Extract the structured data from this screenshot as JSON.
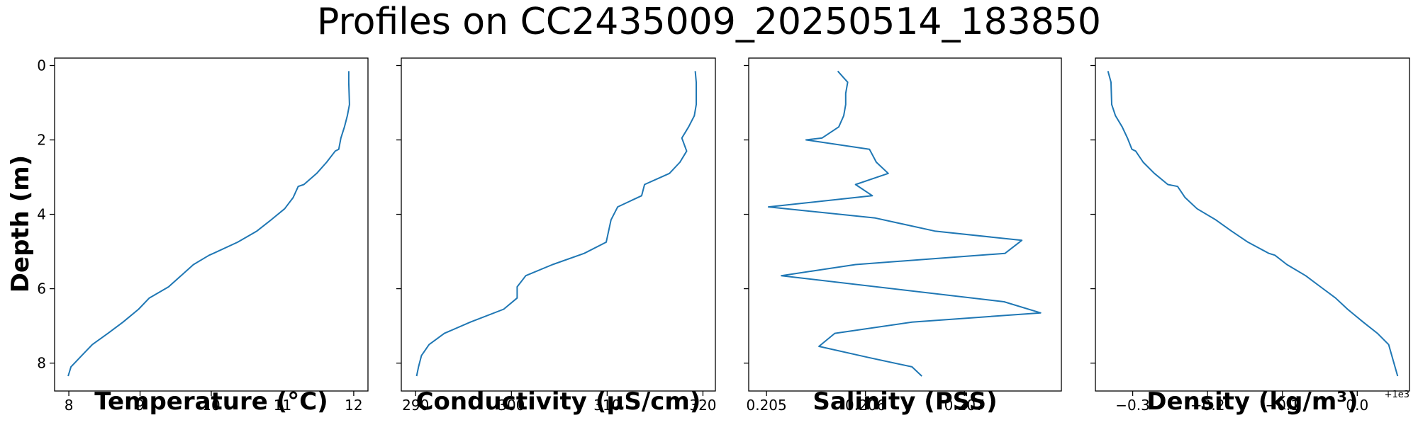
{
  "title": "Profiles on CC2435009_20250514_183850",
  "ylabel": "Depth (m)",
  "line_color": "#1f77b4",
  "chart_data": [
    {
      "type": "line",
      "xlabel": "Temperature (°C)",
      "ylabel": "Depth (m)",
      "xlim": [
        7.8,
        12.2
      ],
      "ylim": [
        8.75,
        -0.2
      ],
      "xticks": [
        8,
        9,
        10,
        11,
        12
      ],
      "xtick_labels": [
        "8",
        "9",
        "10",
        "11",
        "12"
      ],
      "yticks": [
        0,
        2,
        4,
        6,
        8
      ],
      "ytick_labels": [
        "0",
        "2",
        "4",
        "6",
        "8"
      ],
      "offset_label": "",
      "series": [
        {
          "x": [
            11.93,
            11.93,
            11.94,
            11.91,
            11.87,
            11.82,
            11.79,
            11.74,
            11.62,
            11.48,
            11.3,
            11.22,
            11.15,
            11.03,
            10.84,
            10.64,
            10.37,
            10.03,
            9.97,
            9.75,
            9.4,
            9.13,
            8.98,
            8.76,
            8.55,
            8.33,
            8.18,
            8.03,
            7.99
          ],
          "y": [
            0.15,
            0.45,
            1.05,
            1.35,
            1.65,
            1.95,
            2.25,
            2.3,
            2.6,
            2.9,
            3.2,
            3.25,
            3.55,
            3.85,
            4.15,
            4.45,
            4.75,
            5.05,
            5.1,
            5.35,
            5.95,
            6.25,
            6.55,
            6.9,
            7.2,
            7.5,
            7.8,
            8.1,
            8.35
          ]
        }
      ]
    },
    {
      "type": "line",
      "xlabel": "Conductivity (μS/cm)",
      "ylabel": "",
      "xlim": [
        288.5,
        321.3
      ],
      "ylim": [
        8.75,
        -0.2
      ],
      "xticks": [
        290,
        300,
        310,
        320
      ],
      "xtick_labels": [
        "290",
        "300",
        "310",
        "320"
      ],
      "yticks": [
        0,
        2,
        4,
        6,
        8
      ],
      "ytick_labels": [
        "",
        "",
        "",
        "",
        ""
      ],
      "offset_label": "",
      "series": [
        {
          "x": [
            319.2,
            319.3,
            319.3,
            319.1,
            318.5,
            317.8,
            318.3,
            317.6,
            316.5,
            313.9,
            313.6,
            311.1,
            310.4,
            309.9,
            307.6,
            304.3,
            301.5,
            300.6,
            300.6,
            299.2,
            295.7,
            293.0,
            291.4,
            290.6,
            290.3,
            290.1
          ],
          "y": [
            0.15,
            0.45,
            1.05,
            1.35,
            1.65,
            1.95,
            2.3,
            2.6,
            2.9,
            3.2,
            3.5,
            3.8,
            4.15,
            4.75,
            5.05,
            5.35,
            5.65,
            5.95,
            6.25,
            6.55,
            6.9,
            7.2,
            7.5,
            7.8,
            8.1,
            8.35
          ]
        }
      ]
    },
    {
      "type": "line",
      "xlabel": "Salinity (PSS)",
      "ylabel": "",
      "xlim": [
        0.20482,
        0.20798
      ],
      "ylim": [
        8.75,
        -0.2
      ],
      "xticks": [
        0.205,
        0.206,
        0.207
      ],
      "xtick_labels": [
        "0.205",
        "0.206",
        "0.207"
      ],
      "yticks": [
        0,
        2,
        4,
        6,
        8
      ],
      "ytick_labels": [
        "",
        "",
        "",
        "",
        ""
      ],
      "offset_label": "",
      "series": [
        {
          "x": [
            0.20572,
            0.20582,
            0.2058,
            0.2058,
            0.20578,
            0.20573,
            0.20556,
            0.2054,
            0.20604,
            0.20611,
            0.20623,
            0.2059,
            0.20607,
            0.20502,
            0.2061,
            0.2067,
            0.20758,
            0.20741,
            0.2059,
            0.20515,
            0.2074,
            0.20777,
            0.20647,
            0.20569,
            0.20553,
            0.20603,
            0.20647,
            0.20657
          ],
          "y": [
            0.15,
            0.45,
            0.75,
            1.05,
            1.35,
            1.65,
            1.95,
            2.0,
            2.25,
            2.6,
            2.9,
            3.2,
            3.5,
            3.8,
            4.1,
            4.45,
            4.7,
            5.05,
            5.35,
            5.65,
            6.35,
            6.65,
            6.9,
            7.2,
            7.55,
            7.85,
            8.1,
            8.35
          ]
        }
      ]
    },
    {
      "type": "line",
      "xlabel": "Density (kg/m³)",
      "ylabel": "",
      "xlim": [
        -0.3498,
        0.0698
      ],
      "ylim": [
        8.75,
        -0.2
      ],
      "xticks": [
        -0.3,
        -0.2,
        -0.1,
        0.0
      ],
      "xtick_labels": [
        "−0.3",
        "−0.2",
        "−0.1",
        "0.0"
      ],
      "yticks": [
        0,
        2,
        4,
        6,
        8
      ],
      "ytick_labels": [
        "",
        "",
        "",
        "",
        ""
      ],
      "offset_label": "+1e3",
      "series": [
        {
          "x": [
            -0.333,
            -0.329,
            -0.328,
            -0.323,
            -0.314,
            -0.307,
            -0.301,
            -0.296,
            -0.286,
            -0.271,
            -0.253,
            -0.24,
            -0.23,
            -0.214,
            -0.189,
            -0.168,
            -0.146,
            -0.118,
            -0.11,
            -0.094,
            -0.069,
            -0.049,
            -0.029,
            -0.013,
            0.008,
            0.027,
            0.042,
            0.054
          ],
          "y": [
            0.15,
            0.45,
            1.05,
            1.35,
            1.65,
            1.95,
            2.25,
            2.3,
            2.6,
            2.9,
            3.2,
            3.25,
            3.55,
            3.85,
            4.15,
            4.45,
            4.75,
            5.05,
            5.1,
            5.35,
            5.65,
            5.95,
            6.25,
            6.55,
            6.9,
            7.2,
            7.5,
            8.35
          ]
        }
      ]
    }
  ]
}
